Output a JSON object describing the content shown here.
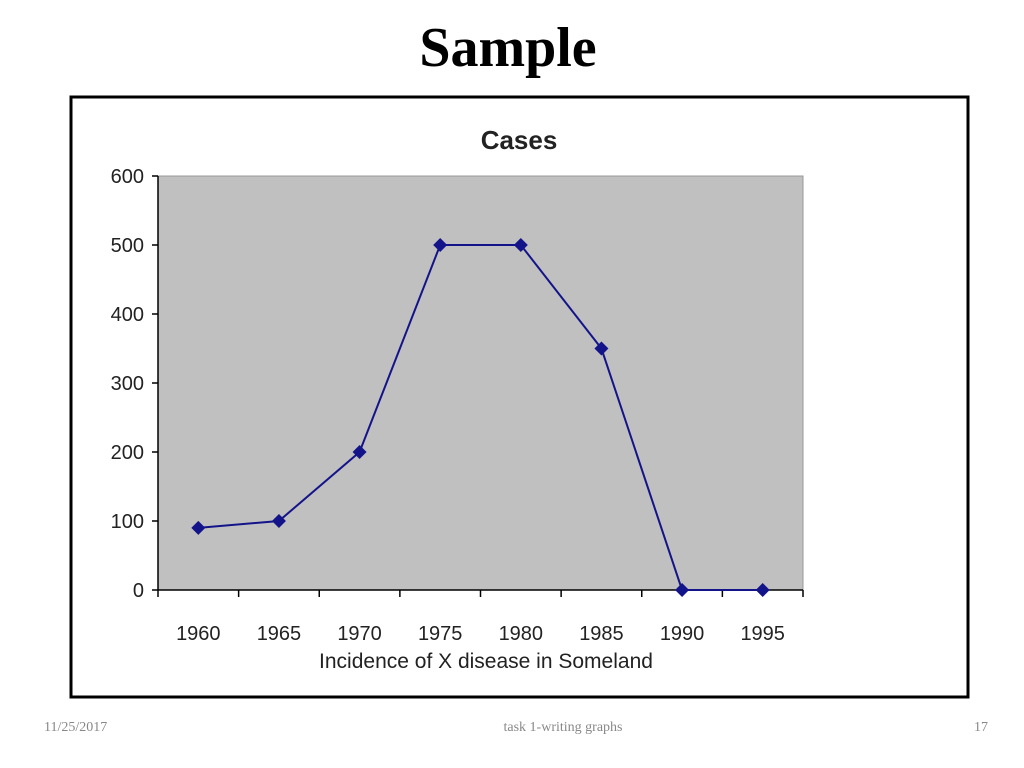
{
  "slide": {
    "title": "Sample",
    "footer": {
      "date": "11/25/2017",
      "center": "task 1-writing graphs",
      "page": "17"
    }
  },
  "chart_data": {
    "type": "line",
    "title": "Cases",
    "x_label": "Incidence of X disease in Someland",
    "categories": [
      "1960",
      "1965",
      "1970",
      "1975",
      "1980",
      "1985",
      "1990",
      "1995"
    ],
    "series": [
      {
        "name": "Cases",
        "color": "#14148a",
        "values": [
          90,
          100,
          200,
          500,
          500,
          350,
          0,
          0
        ]
      }
    ],
    "ylim": [
      0,
      600
    ],
    "yticks": [
      0,
      100,
      200,
      300,
      400,
      500,
      600
    ],
    "plot_background": "#c0c0c0",
    "grid": false,
    "legend": false
  }
}
